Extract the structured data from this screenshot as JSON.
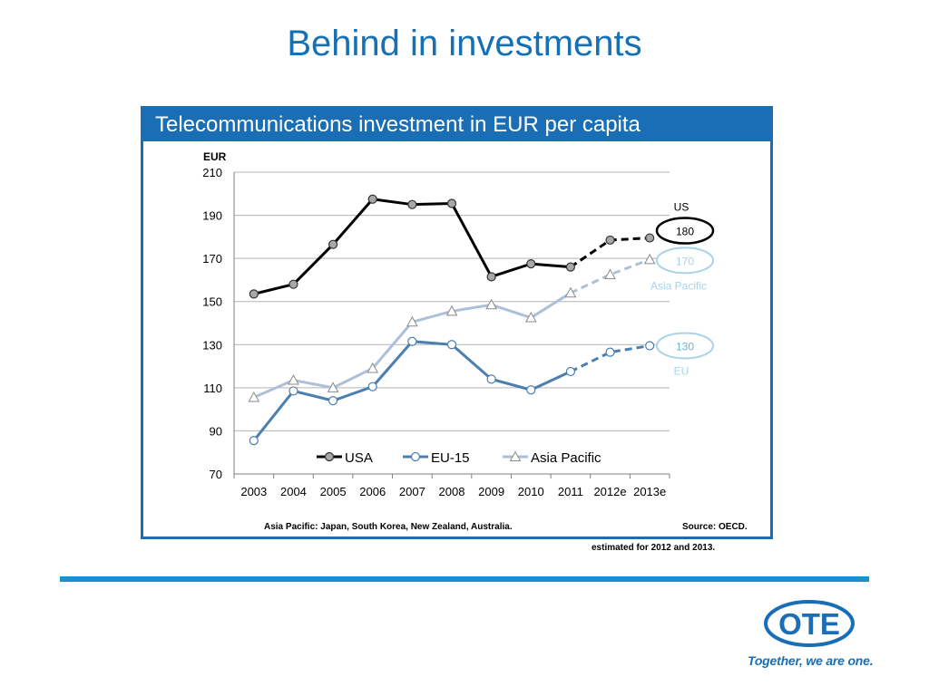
{
  "slide": {
    "title": "Behind in investments",
    "box_title": "Telecommunications investment in EUR per capita",
    "footnote_left": "Asia Pacific: Japan, South Korea, New Zealand, Australia.",
    "footnote_right": "Source: OECD.",
    "estimate_note": "estimated for 2012 and 2013.",
    "logo_text": "OTE",
    "tagline": "Together, we are one."
  },
  "colors": {
    "brand_blue": "#1a6eb5",
    "rule_blue": "#1a8fd6"
  },
  "chart_data": {
    "type": "line",
    "categories": [
      "2003",
      "2004",
      "2005",
      "2006",
      "2007",
      "2008",
      "2009",
      "2010",
      "2011",
      "2012e",
      "2013e"
    ],
    "ylabel": "EUR",
    "ylim": [
      70,
      210
    ],
    "yticks": [
      70,
      90,
      110,
      130,
      150,
      170,
      190,
      210
    ],
    "grid": true,
    "legend_position": "bottom-inside",
    "estimated_from_index": 8,
    "series": [
      {
        "name": "USA",
        "color": "#000000",
        "marker": "circle",
        "marker_fill": "#a8a8a8",
        "values": [
          153.5,
          158,
          176.5,
          197.5,
          195,
          195.5,
          161.5,
          167.5,
          166,
          178.5,
          179.5
        ]
      },
      {
        "name": "EU-15",
        "color": "#4a7fb0",
        "marker": "circle",
        "marker_fill": "#ffffff",
        "values": [
          85.5,
          108.5,
          104,
          110.5,
          131.5,
          130,
          114,
          109,
          117.5,
          126.5,
          129.5
        ]
      },
      {
        "name": "Asia Pacific",
        "color": "#adbfd9",
        "marker": "triangle",
        "marker_fill": "#ffffff",
        "values": [
          105.5,
          113.5,
          110,
          119,
          140.5,
          145.5,
          148.5,
          142.5,
          154,
          162.5,
          169.5
        ]
      }
    ],
    "callouts": [
      {
        "series": "USA",
        "label": "US",
        "value": "180",
        "ring_color": "#000000",
        "text_color": "#000000"
      },
      {
        "series": "Asia Pacific",
        "label": "Asia Pacific",
        "value": "170",
        "ring_color": "#a9d3e8",
        "text_color": "#a9d3e8"
      },
      {
        "series": "EU-15",
        "label": "EU",
        "value": "130",
        "ring_color": "#a9d3e8",
        "text_color": "#6fb1d6"
      }
    ]
  }
}
